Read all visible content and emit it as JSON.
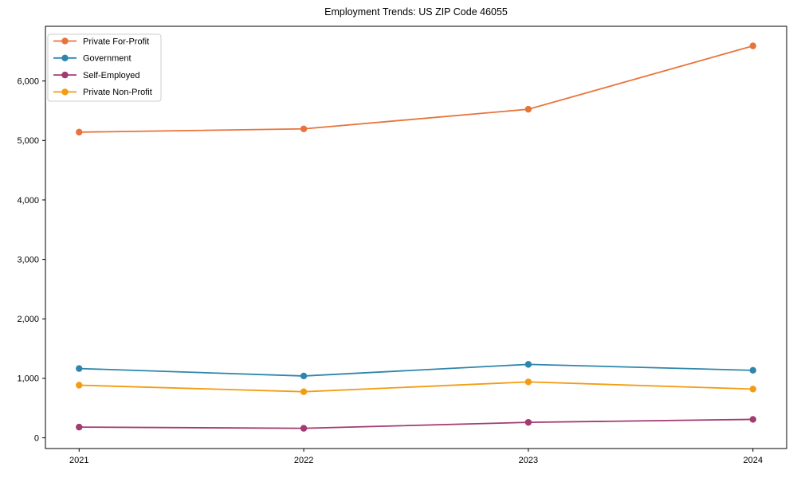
{
  "page": {
    "title": "Employment Trends: US ZIP Code 46055"
  },
  "chart_data": {
    "type": "line",
    "title": "Employment Trends: US ZIP Code 46055",
    "xlabel": "",
    "ylabel": "",
    "x": [
      2021,
      2022,
      2023,
      2024
    ],
    "x_tick_labels": [
      "2021",
      "2022",
      "2023",
      "2024"
    ],
    "series": [
      {
        "name": "Private For-Profit",
        "color": "#e8743b",
        "values": [
          5140,
          5195,
          5525,
          6590
        ]
      },
      {
        "name": "Government",
        "color": "#2e86ab",
        "values": [
          1165,
          1040,
          1235,
          1135
        ]
      },
      {
        "name": "Self-Employed",
        "color": "#a23b72",
        "values": [
          180,
          160,
          260,
          310
        ]
      },
      {
        "name": "Private Non-Profit",
        "color": "#f39c12",
        "values": [
          885,
          775,
          940,
          820
        ]
      }
    ],
    "yticks": [
      0,
      1000,
      2000,
      3000,
      4000,
      5000,
      6000
    ],
    "y_tick_labels": [
      "0",
      "1,000",
      "2,000",
      "3,000",
      "4,000",
      "5,000",
      "6,000"
    ],
    "xlim": [
      2020.85,
      2024.15
    ],
    "ylim": [
      -180,
      6920
    ],
    "grid": false,
    "legend_position": "upper-left",
    "marker": "circle",
    "axis_color": "#000000",
    "legend_border_color": "#cccccc",
    "legend_background": "#ffffff"
  }
}
